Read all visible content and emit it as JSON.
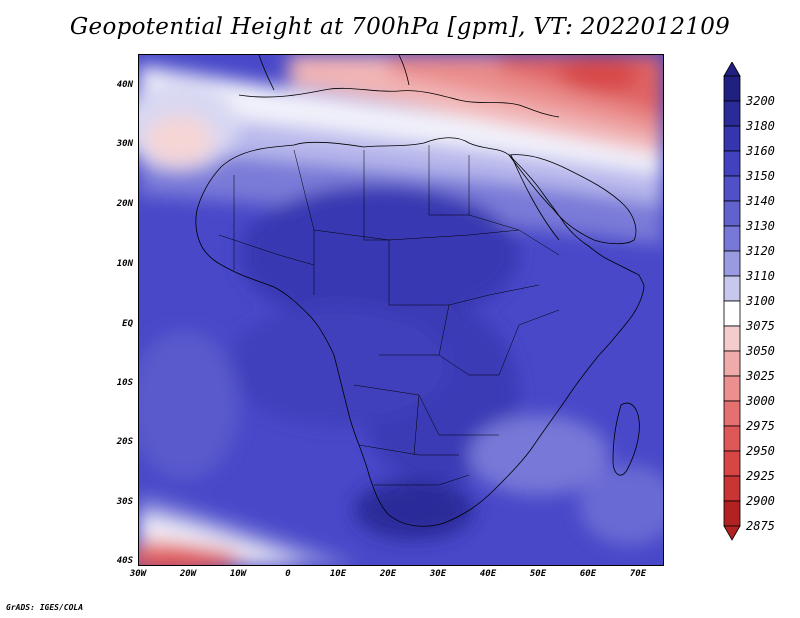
{
  "title": "Geopotential Height at 700hPa [gpm], VT: 2022012109",
  "map": {
    "region": "Africa",
    "variable": "Geopotential Height",
    "level": "700hPa",
    "units": "gpm",
    "valid_time": "2022012109"
  },
  "axes": {
    "lat_labels": [
      "40N",
      "30N",
      "20N",
      "10N",
      "EQ",
      "10S",
      "20S",
      "30S",
      "40S"
    ],
    "lon_labels": [
      "30W",
      "20W",
      "10W",
      "0",
      "10E",
      "20E",
      "30E",
      "40E",
      "50E",
      "60E",
      "70E"
    ]
  },
  "legend": {
    "levels": [
      "3200",
      "3180",
      "3160",
      "3150",
      "3140",
      "3130",
      "3120",
      "3110",
      "3100",
      "3075",
      "3050",
      "3025",
      "3000",
      "2975",
      "2950",
      "2925",
      "2900",
      "2875"
    ],
    "colors": [
      "#202080",
      "#2a2a98",
      "#3535b0",
      "#4242c0",
      "#5050c8",
      "#6262cf",
      "#7878d8",
      "#9a9ae2",
      "#c8c8ef",
      "#ffffff",
      "#f4cccc",
      "#efaaaa",
      "#eb8f8f",
      "#e57070",
      "#df5858",
      "#d84545",
      "#c93434",
      "#b22222"
    ]
  },
  "footer": "GrADS: IGES/COLA"
}
